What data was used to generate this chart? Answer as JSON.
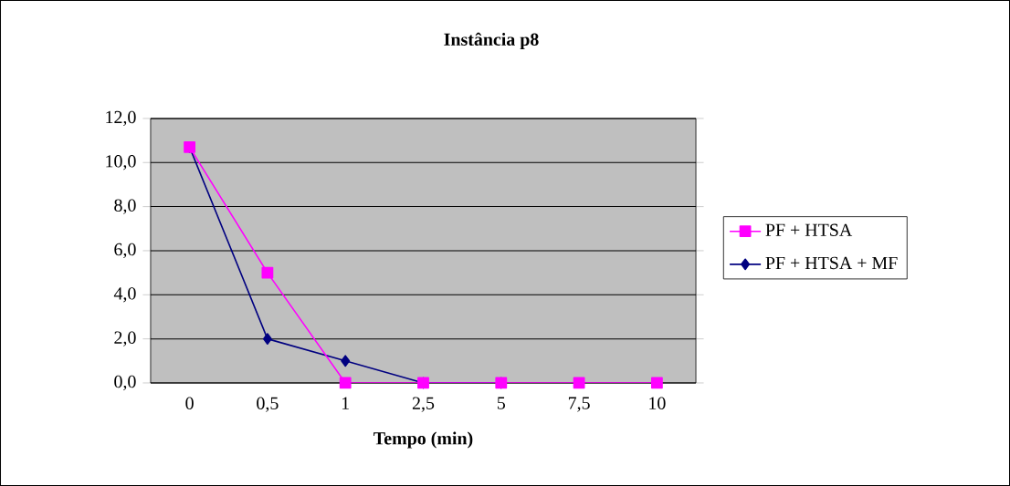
{
  "chart_data": {
    "type": "line",
    "title": "Instância p8",
    "xlabel": "Tempo (min)",
    "categories": [
      "0",
      "0,5",
      "1",
      "2,5",
      "5",
      "7,5",
      "10"
    ],
    "series": [
      {
        "name": "PF + HTSA",
        "color": "#ff00ff",
        "marker": "square",
        "values": [
          10.7,
          5.0,
          0,
          0,
          0,
          0,
          0
        ]
      },
      {
        "name": "PF + HTSA + MF",
        "color": "#000080",
        "marker": "diamond",
        "values": [
          10.7,
          2.0,
          1.0,
          0,
          0,
          null,
          null
        ]
      }
    ],
    "ylim": [
      0,
      12
    ],
    "yticks": [
      {
        "value": 0,
        "label": "0,0"
      },
      {
        "value": 2,
        "label": "2,0"
      },
      {
        "value": 4,
        "label": "4,0"
      },
      {
        "value": 6,
        "label": "6,0"
      },
      {
        "value": 8,
        "label": "8,0"
      },
      {
        "value": 10,
        "label": "10,0"
      },
      {
        "value": 12,
        "label": "12,0"
      }
    ],
    "grid": "y",
    "legend": "right"
  }
}
